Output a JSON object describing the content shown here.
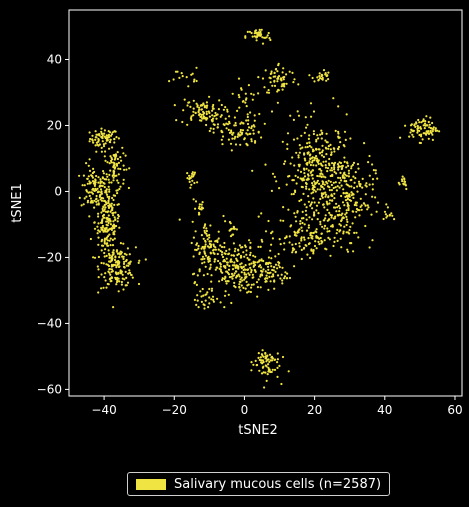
{
  "chart_data": {
    "type": "scatter",
    "title": "",
    "xlabel": "tSNE2",
    "ylabel": "tSNE1",
    "xlim": [
      -50,
      62
    ],
    "ylim": [
      -62,
      55
    ],
    "xticks": [
      -40,
      -20,
      0,
      20,
      40,
      60
    ],
    "yticks": [
      -60,
      -40,
      -20,
      0,
      20,
      40
    ],
    "grid": false,
    "legend_position": "bottom-center",
    "series": [
      {
        "name": "Salivary mucous cells (n=2587)",
        "color": "#f0e442",
        "count": 2587,
        "clusters": [
          {
            "x": -40,
            "y": 16,
            "sx": 2.0,
            "sy": 1.5,
            "n": 70
          },
          {
            "x": -43,
            "y": 1,
            "sx": 1.8,
            "sy": 3.5,
            "n": 90
          },
          {
            "x": -37,
            "y": 8,
            "sx": 1.5,
            "sy": 3.5,
            "n": 70
          },
          {
            "x": -39,
            "y": -9,
            "sx": 1.8,
            "sy": 6.0,
            "n": 200
          },
          {
            "x": -36,
            "y": -23,
            "sx": 2.5,
            "sy": 3.0,
            "n": 150
          },
          {
            "x": 4,
            "y": 47,
            "sx": 1.8,
            "sy": 1.2,
            "n": 40
          },
          {
            "x": 10,
            "y": 34,
            "sx": 2.5,
            "sy": 2.5,
            "n": 60
          },
          {
            "x": 22,
            "y": 35,
            "sx": 1.2,
            "sy": 1.0,
            "n": 25
          },
          {
            "x": -12,
            "y": 24,
            "sx": 3.0,
            "sy": 2.0,
            "n": 90
          },
          {
            "x": -2,
            "y": 18,
            "sx": 3.5,
            "sy": 2.5,
            "n": 90
          },
          {
            "x": 1,
            "y": 28,
            "sx": 3.0,
            "sy": 4.0,
            "n": 25
          },
          {
            "x": -17,
            "y": 35,
            "sx": 2.0,
            "sy": 1.2,
            "n": 15
          },
          {
            "x": -15,
            "y": 4,
            "sx": 0.7,
            "sy": 1.3,
            "n": 20
          },
          {
            "x": 21,
            "y": 5,
            "sx": 5.0,
            "sy": 8.0,
            "n": 360
          },
          {
            "x": 29,
            "y": -2,
            "sx": 4.0,
            "sy": 7.0,
            "n": 200
          },
          {
            "x": 17,
            "y": -14,
            "sx": 5.0,
            "sy": 4.0,
            "n": 120
          },
          {
            "x": 51,
            "y": 19,
            "sx": 2.0,
            "sy": 1.8,
            "n": 80
          },
          {
            "x": 45,
            "y": 3,
            "sx": 1.0,
            "sy": 1.2,
            "n": 15
          },
          {
            "x": 41,
            "y": -7,
            "sx": 1.2,
            "sy": 0.8,
            "n": 10
          },
          {
            "x": -10,
            "y": -18,
            "sx": 2.5,
            "sy": 4.5,
            "n": 110
          },
          {
            "x": -1,
            "y": -23,
            "sx": 4.5,
            "sy": 4.0,
            "n": 230
          },
          {
            "x": 8,
            "y": -25,
            "sx": 2.0,
            "sy": 2.0,
            "n": 40
          },
          {
            "x": -4,
            "y": -11,
            "sx": 1.0,
            "sy": 1.0,
            "n": 15
          },
          {
            "x": -11,
            "y": -33,
            "sx": 1.5,
            "sy": 1.5,
            "n": 25
          },
          {
            "x": -13,
            "y": -5,
            "sx": 1.0,
            "sy": 2.0,
            "n": 15
          },
          {
            "x": 6,
            "y": -52,
            "sx": 2.0,
            "sy": 2.5,
            "n": 70
          }
        ]
      }
    ]
  },
  "legend": {
    "label": "Salivary mucous cells (n=2587)",
    "color": "#f0e442"
  }
}
